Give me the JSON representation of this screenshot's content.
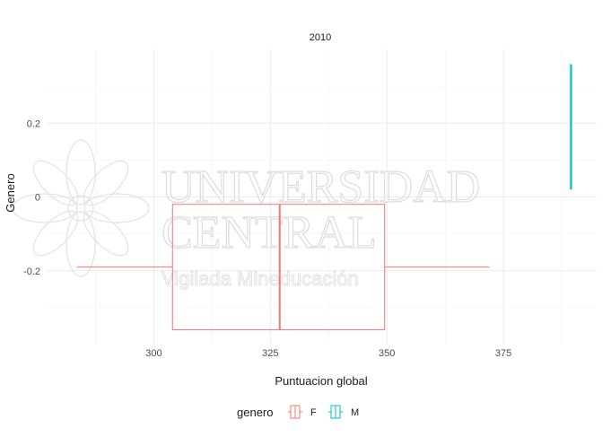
{
  "chart_data": {
    "type": "boxplot",
    "facet_label": "2010",
    "xlabel": "Puntuacion global",
    "ylabel": "Genero",
    "xlim": [
      277,
      395
    ],
    "ylim": [
      -0.4,
      0.4
    ],
    "x_ticks": [
      300,
      325,
      350,
      375
    ],
    "y_ticks": [
      -0.2,
      0,
      0.2
    ],
    "y_tick_labels": [
      "-0.2",
      "0",
      "0.2"
    ],
    "grid": true,
    "legend": {
      "title": "genero",
      "position": "bottom",
      "entries": [
        "F",
        "M"
      ]
    },
    "series": [
      {
        "name": "F",
        "color": "#F8766D",
        "y_center": -0.19,
        "y_halfwidth": 0.17,
        "min": 283.5,
        "q1": 304.0,
        "median": 327.0,
        "q3": 349.5,
        "max": 372.0
      },
      {
        "name": "M",
        "color": "#00BFC4",
        "x": 389.5,
        "y_low": 0.02,
        "y_high": 0.36
      }
    ]
  },
  "watermark": {
    "line1": "UNIVERSIDAD",
    "line2": "CENTRAL",
    "line3": "Vigilada Mineducación"
  }
}
